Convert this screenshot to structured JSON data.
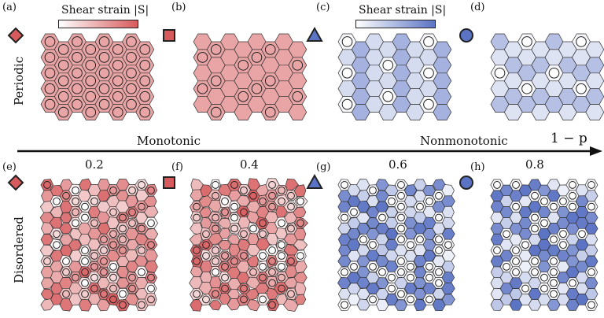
{
  "colors": {
    "red_low": "#fbeeee",
    "red_high": "#d75a5c",
    "blue_low": "#eef0f8",
    "blue_high": "#5b73c4",
    "edge": "#333333"
  },
  "colorbars": [
    {
      "label": "Shear strain |S|",
      "scheme": "red"
    },
    {
      "label": "Shear strain |S|",
      "scheme": "blue"
    }
  ],
  "row_labels": {
    "top": "Periodic",
    "bottom": "Disordered"
  },
  "axis": {
    "label": "1 − p",
    "left_regime": "Monotonic",
    "right_regime": "Nonmonotonic"
  },
  "panels": [
    {
      "id": "(a)",
      "marker": "diamond",
      "scheme": "red",
      "row": "Periodic"
    },
    {
      "id": "(b)",
      "marker": "square",
      "scheme": "red",
      "row": "Periodic"
    },
    {
      "id": "(c)",
      "marker": "triangle",
      "scheme": "blue",
      "row": "Periodic"
    },
    {
      "id": "(d)",
      "marker": "circle",
      "scheme": "blue",
      "row": "Periodic"
    },
    {
      "id": "(e)",
      "marker": "diamond",
      "scheme": "red",
      "row": "Disordered",
      "p_value": "0.2"
    },
    {
      "id": "(f)",
      "marker": "square",
      "scheme": "red",
      "row": "Disordered",
      "p_value": "0.4"
    },
    {
      "id": "(g)",
      "marker": "triangle",
      "scheme": "blue",
      "row": "Disordered",
      "p_value": "0.6"
    },
    {
      "id": "(h)",
      "marker": "circle",
      "scheme": "blue",
      "row": "Disordered",
      "p_value": "0.8"
    }
  ]
}
